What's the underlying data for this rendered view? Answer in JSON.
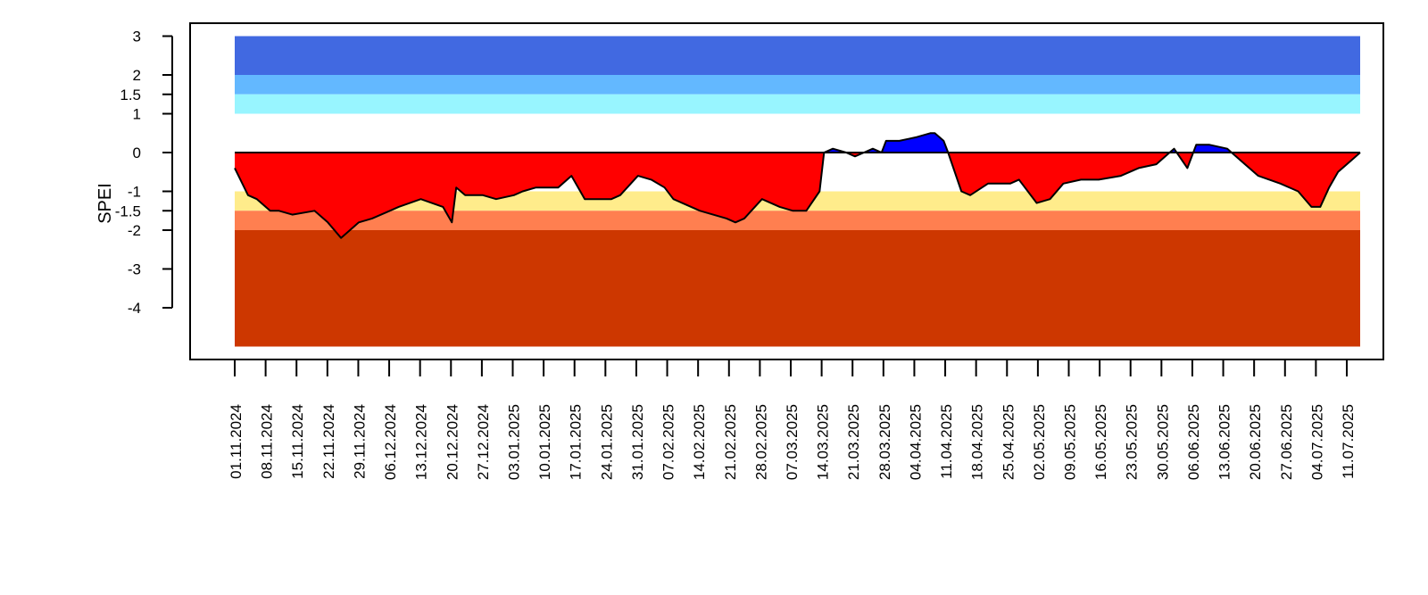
{
  "chart_data": {
    "type": "area",
    "ylabel": "SPEI",
    "y_ticks": [
      3,
      2,
      1.5,
      1,
      0,
      -1,
      -1.5,
      -2,
      -3,
      -4
    ],
    "y_tick_labels": [
      "3",
      "2",
      "1.5",
      "1",
      "0",
      "-1",
      "-1.5",
      "-2",
      "-3",
      "-4"
    ],
    "ylim": [
      -5.3,
      3.3
    ],
    "x_tick_labels": [
      "01.11.2024",
      "08.11.2024",
      "15.11.2024",
      "22.11.2024",
      "29.11.2024",
      "06.12.2024",
      "13.12.2024",
      "20.12.2024",
      "27.12.2024",
      "03.01.2025",
      "10.01.2025",
      "17.01.2025",
      "24.01.2025",
      "31.01.2025",
      "07.02.2025",
      "14.02.2025",
      "21.02.2025",
      "28.02.2025",
      "07.03.2025",
      "14.03.2025",
      "21.03.2025",
      "28.03.2025",
      "04.04.2025",
      "11.04.2025",
      "18.04.2025",
      "25.04.2025",
      "02.05.2025",
      "09.05.2025",
      "16.05.2025",
      "23.05.2025",
      "30.05.2025",
      "06.06.2025",
      "13.06.2025",
      "20.06.2025",
      "27.06.2025",
      "04.07.2025",
      "11.07.2025"
    ],
    "x_range_days": [
      0,
      254
    ],
    "bands": [
      {
        "from": 2,
        "to": 3,
        "color": "#4169E1"
      },
      {
        "from": 1.5,
        "to": 2,
        "color": "#63B8FF"
      },
      {
        "from": 1,
        "to": 1.5,
        "color": "#98F5FF"
      },
      {
        "from": -1.5,
        "to": -1,
        "color": "#FFEC8B"
      },
      {
        "from": -2,
        "to": -1.5,
        "color": "#FF7F50"
      },
      {
        "from": -5,
        "to": -2,
        "color": "#CD3700"
      }
    ],
    "positive_color": "#0000FF",
    "negative_color": "#FF0000",
    "series": [
      {
        "date": [
          "01.11.2024",
          "04.11.2024",
          "06.11.2024",
          "09.11.2024",
          "11.11.2024",
          "14.11.2024",
          "19.11.2024",
          "22.11.2024",
          "25.11.2024",
          "26.11.2024",
          "29.11.2024",
          "02.12.2024",
          "06.12.2024",
          "08.12.2024",
          "13.12.2024",
          "18.12.2024",
          "20.12.2024",
          "21.12.2024",
          "23.12.2024",
          "27.12.2024",
          "30.12.2024",
          "03.01.2025",
          "05.01.2025",
          "08.01.2025",
          "13.01.2025",
          "16.01.2025",
          "19.01.2025",
          "25.01.2025",
          "27.01.2025",
          "31.01.2025",
          "03.02.2025",
          "06.02.2025",
          "08.02.2025",
          "14.02.2025",
          "20.02.2025",
          "22.02.2025",
          "24.02.2025",
          "28.02.2025",
          "04.03.2025",
          "07.03.2025",
          "10.03.2025",
          "13.03.2025",
          "14.03.2025",
          "16.03.2025",
          "19.03.2025",
          "21.03.2025",
          "23.03.2025",
          "25.03.2025",
          "27.03.2025",
          "28.03.2025",
          "31.03.2025",
          "04.04.2025",
          "07.04.2025",
          "08.04.2025",
          "10.04.2025",
          "11.04.2025",
          "14.04.2025",
          "16.04.2025",
          "20.04.2025",
          "23.04.2025",
          "25.04.2025",
          "27.04.2025",
          "01.05.2025",
          "04.05.2025",
          "07.05.2025",
          "11.05.2025",
          "15.05.2025",
          "20.05.2025",
          "24.05.2025",
          "28.05.2025",
          "31.05.2025",
          "01.06.2025",
          "04.06.2025",
          "06.06.2025",
          "09.06.2025",
          "13.06.2025",
          "17.06.2025",
          "20.06.2025",
          "25.06.2025",
          "29.06.2025",
          "02.07.2025",
          "04.07.2025",
          "06.07.2025",
          "08.07.2025",
          "11.07.2025",
          "13.07.2025"
        ],
        "x": [
          0,
          3,
          5,
          8,
          10,
          13,
          18,
          21,
          24,
          25,
          28,
          31,
          35,
          37,
          42,
          47,
          49,
          50,
          52,
          56,
          59,
          63,
          65,
          68,
          73,
          76,
          79,
          85,
          87,
          91,
          94,
          97,
          99,
          105,
          111,
          113,
          115,
          119,
          123,
          126,
          129,
          132,
          133,
          135,
          138,
          140,
          142,
          144,
          146,
          147,
          150,
          154,
          157,
          158,
          160,
          161,
          164,
          166,
          170,
          173,
          175,
          177,
          181,
          184,
          187,
          191,
          195,
          200,
          204,
          208,
          211,
          212,
          215,
          217,
          220,
          224,
          228,
          231,
          236,
          240,
          243,
          245,
          247,
          249,
          252,
          254
        ],
        "y": [
          -0.4,
          -1.1,
          -1.2,
          -1.5,
          -1.5,
          -1.6,
          -1.5,
          -1.8,
          -2.2,
          -2.1,
          -1.8,
          -1.7,
          -1.5,
          -1.4,
          -1.2,
          -1.4,
          -1.8,
          -0.9,
          -1.1,
          -1.1,
          -1.2,
          -1.1,
          -1.0,
          -0.9,
          -0.9,
          -0.6,
          -1.2,
          -1.2,
          -1.1,
          -0.6,
          -0.7,
          -0.9,
          -1.2,
          -1.5,
          -1.7,
          -1.8,
          -1.7,
          -1.2,
          -1.4,
          -1.5,
          -1.5,
          -1.0,
          0.0,
          0.1,
          0.0,
          -0.1,
          0.0,
          0.1,
          0.0,
          0.3,
          0.3,
          0.4,
          0.5,
          0.5,
          0.3,
          0.0,
          -1.0,
          -1.1,
          -0.8,
          -0.8,
          -0.8,
          -0.7,
          -1.3,
          -1.2,
          -0.8,
          -0.7,
          -0.7,
          -0.6,
          -0.4,
          -0.3,
          0.0,
          0.1,
          -0.4,
          0.2,
          0.2,
          0.1,
          -0.3,
          -0.6,
          -0.8,
          -1.0,
          -1.4,
          -1.4,
          -0.9,
          -0.5,
          -0.2,
          0.0
        ]
      }
    ]
  }
}
